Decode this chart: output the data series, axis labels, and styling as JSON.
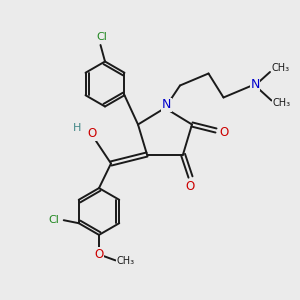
{
  "bg_color": "#ebebeb",
  "bond_color": "#1a1a1a",
  "N_color": "#0000cc",
  "O_color": "#cc0000",
  "Cl_color": "#228822",
  "H_color": "#448888",
  "figsize": [
    3.0,
    3.0
  ],
  "dpi": 100,
  "xlim": [
    0,
    10
  ],
  "ylim": [
    0,
    10
  ]
}
